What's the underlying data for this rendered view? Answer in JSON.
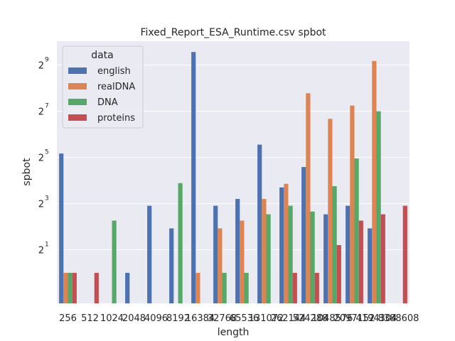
{
  "chart_data": {
    "type": "bar",
    "title": "Fixed_Report_ESA_Runtime.csv spbot",
    "xlabel": "length",
    "ylabel": "spbot",
    "yscale": "log2",
    "yticks": [
      {
        "base": "2",
        "exp": "1",
        "value": 2
      },
      {
        "base": "2",
        "exp": "3",
        "value": 8
      },
      {
        "base": "2",
        "exp": "5",
        "value": 32
      },
      {
        "base": "2",
        "exp": "7",
        "value": 128
      },
      {
        "base": "2",
        "exp": "9",
        "value": 512
      }
    ],
    "grid": true,
    "legend_title": "data",
    "legend_position": "top-left",
    "categories": [
      "256",
      "512",
      "1024",
      "2048",
      "4096",
      "8192",
      "16384",
      "32768",
      "65536",
      "131072",
      "262144",
      "524288",
      "1048576",
      "2097152",
      "4194304",
      "8388608"
    ],
    "series": [
      {
        "name": "english",
        "color": "#4c72b0",
        "values": [
          36,
          null,
          null,
          1,
          7.5,
          3.8,
          760,
          7.5,
          9.2,
          47,
          13,
          24,
          5.8,
          7.5,
          3.8,
          null
        ]
      },
      {
        "name": "realDNA",
        "color": "#dd8452",
        "values": [
          1,
          null,
          null,
          null,
          null,
          null,
          1,
          3.8,
          4.8,
          9.2,
          14.5,
          220,
          102,
          152,
          580,
          null
        ]
      },
      {
        "name": "DNA",
        "color": "#55a868",
        "values": [
          1,
          null,
          4.8,
          null,
          null,
          14.8,
          null,
          1,
          1,
          5.8,
          7.5,
          6.3,
          13.5,
          31,
          128,
          null
        ]
      },
      {
        "name": "proteins",
        "color": "#c44e52",
        "values": [
          1,
          1,
          null,
          null,
          null,
          null,
          null,
          null,
          null,
          null,
          1,
          1,
          2.3,
          4.8,
          5.8,
          7.5
        ]
      }
    ],
    "ylim": [
      0.4,
      1050
    ]
  }
}
